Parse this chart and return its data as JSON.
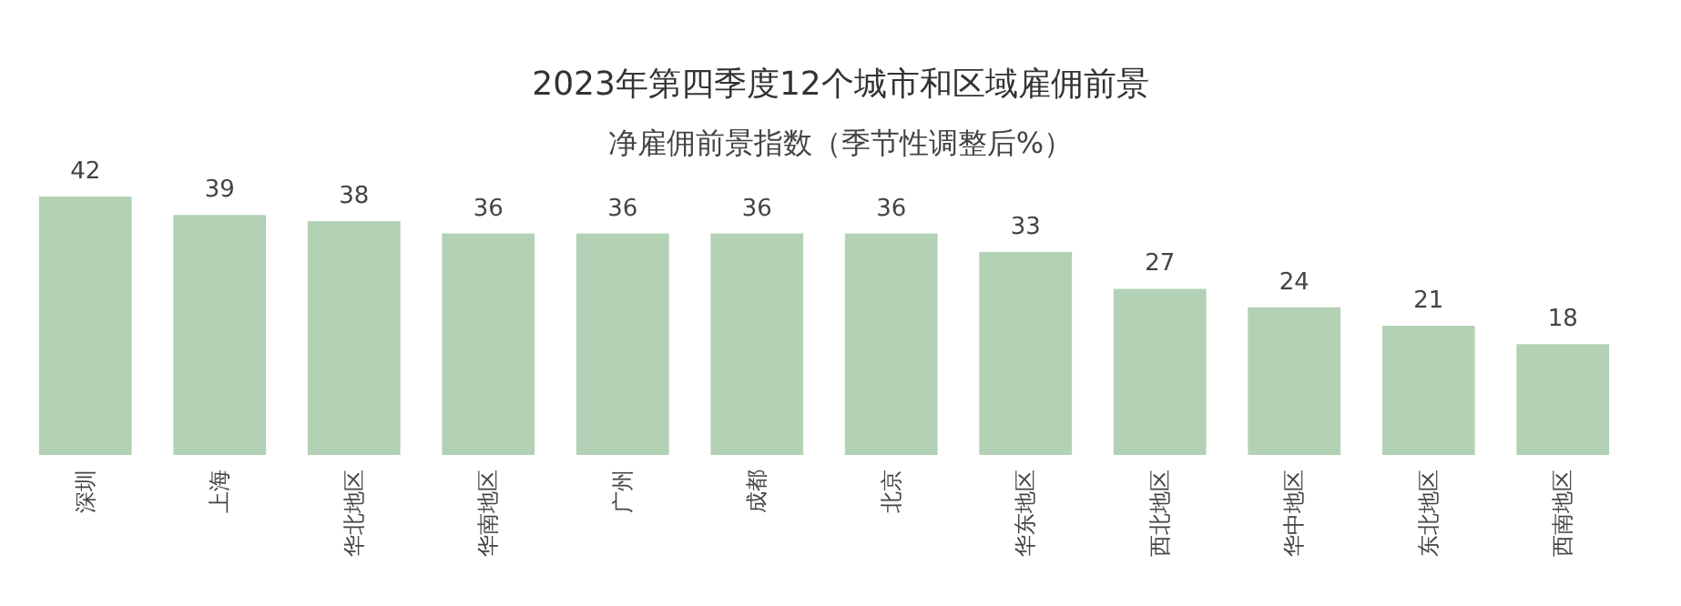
{
  "chart_data": {
    "type": "bar",
    "title": "2023年第四季度12个城市和区域雇佣前景",
    "subtitle": "净雇佣前景指数（季节性调整后%）",
    "categories": [
      "深圳",
      "上海",
      "华北地区",
      "华南地区",
      "广州",
      "成都",
      "北京",
      "华东地区",
      "西北地区",
      "华中地区",
      "东北地区",
      "西南地区"
    ],
    "values": [
      42,
      39,
      38,
      36,
      36,
      36,
      36,
      33,
      27,
      24,
      21,
      18
    ],
    "color": "#b3d1b5",
    "data_labels": true
  }
}
